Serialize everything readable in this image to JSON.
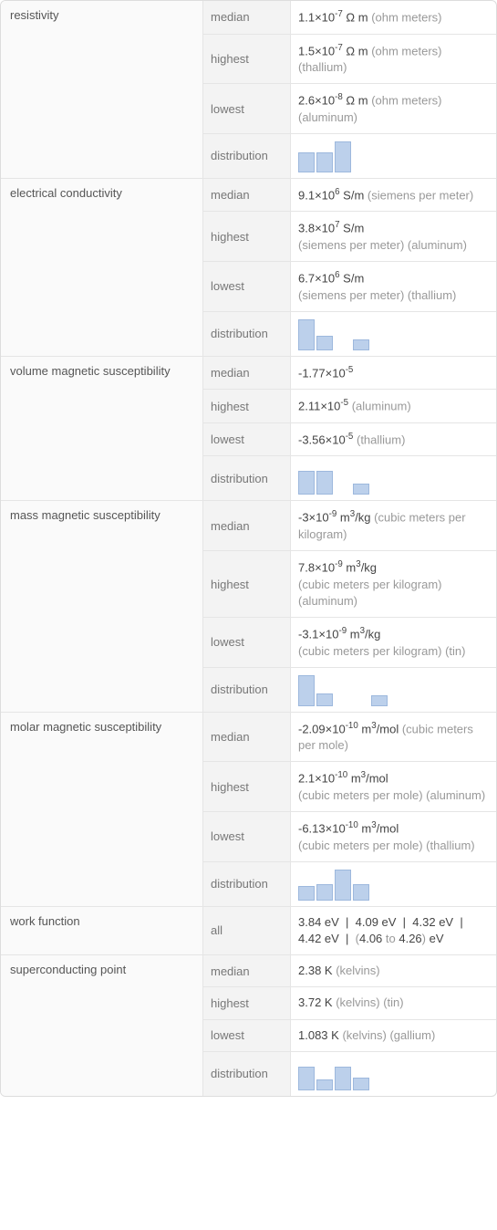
{
  "bar_color": "#bcd0eb",
  "bar_border": "#9db8dd",
  "properties": [
    {
      "name": "resistivity",
      "rows": [
        {
          "label": "median",
          "value_html": "1.1×10<sup>-7</sup> Ω m <span class='unit-note'>(ohm meters)</span>"
        },
        {
          "label": "highest",
          "value_html": "1.5×10<sup>-7</sup> Ω m <span class='unit-note'>(ohm meters) (thallium)</span>"
        },
        {
          "label": "lowest",
          "value_html": "2.6×10<sup>-8</sup> Ω m <span class='unit-note'>(ohm meters) (aluminum)</span>"
        },
        {
          "label": "distribution",
          "dist": [
            22,
            22,
            34
          ]
        }
      ]
    },
    {
      "name": "electrical conductivity",
      "rows": [
        {
          "label": "median",
          "value_html": "9.1×10<sup>6</sup> S/m <span class='unit-note'>(siemens per meter)</span>"
        },
        {
          "label": "highest",
          "value_html": "3.8×10<sup>7</sup> S/m<br><span class='unit-note'>(siemens per meter) (aluminum)</span>"
        },
        {
          "label": "lowest",
          "value_html": "6.7×10<sup>6</sup> S/m<br><span class='unit-note'>(siemens per meter) (thallium)</span>"
        },
        {
          "label": "distribution",
          "dist": [
            34,
            16,
            0,
            12
          ]
        }
      ]
    },
    {
      "name": "volume magnetic susceptibility",
      "rows": [
        {
          "label": "median",
          "value_html": "-1.77×10<sup>-5</sup>"
        },
        {
          "label": "highest",
          "value_html": "2.11×10<sup>-5</sup> <span class='unit-note'>(aluminum)</span>"
        },
        {
          "label": "lowest",
          "value_html": "-3.56×10<sup>-5</sup> <span class='unit-note'>(thallium)</span>"
        },
        {
          "label": "distribution",
          "dist": [
            26,
            26,
            0,
            12
          ]
        }
      ]
    },
    {
      "name": "mass magnetic susceptibility",
      "rows": [
        {
          "label": "median",
          "value_html": "-3×10<sup>-9</sup> m<sup>3</sup>/kg <span class='unit-note'>(cubic meters per kilogram)</span>"
        },
        {
          "label": "highest",
          "value_html": "7.8×10<sup>-9</sup> m<sup>3</sup>/kg<br><span class='unit-note'>(cubic meters per kilogram) (aluminum)</span>"
        },
        {
          "label": "lowest",
          "value_html": "-3.1×10<sup>-9</sup> m<sup>3</sup>/kg<br><span class='unit-note'>(cubic meters per kilogram) (tin)</span>"
        },
        {
          "label": "distribution",
          "dist": [
            34,
            14,
            0,
            0,
            12
          ]
        }
      ]
    },
    {
      "name": "molar magnetic susceptibility",
      "rows": [
        {
          "label": "median",
          "value_html": "-2.09×10<sup>-10</sup> m<sup>3</sup>/mol <span class='unit-note'>(cubic meters per mole)</span>"
        },
        {
          "label": "highest",
          "value_html": "2.1×10<sup>-10</sup> m<sup>3</sup>/mol<br><span class='unit-note'>(cubic meters per mole) (aluminum)</span>"
        },
        {
          "label": "lowest",
          "value_html": "-6.13×10<sup>-10</sup> m<sup>3</sup>/mol<br><span class='unit-note'>(cubic meters per mole) (thallium)</span>"
        },
        {
          "label": "distribution",
          "dist": [
            16,
            18,
            34,
            18
          ]
        }
      ]
    },
    {
      "name": "work function",
      "rows": [
        {
          "label": "all",
          "value_html": "3.84 eV &nbsp;|&nbsp; 4.09 eV &nbsp;|&nbsp; 4.32 eV &nbsp;|&nbsp; 4.42 eV &nbsp;|&nbsp; <span class='unit-note'>(</span>4.06 <span class='unit-note'>to</span> 4.26<span class='unit-note'>)</span> eV"
        }
      ]
    },
    {
      "name": "superconducting point",
      "rows": [
        {
          "label": "median",
          "value_html": "2.38 K <span class='unit-note'>(kelvins)</span>"
        },
        {
          "label": "highest",
          "value_html": "3.72 K <span class='unit-note'>(kelvins) (tin)</span>"
        },
        {
          "label": "lowest",
          "value_html": "1.083 K <span class='unit-note'>(kelvins) (gallium)</span>"
        },
        {
          "label": "distribution",
          "dist": [
            26,
            12,
            26,
            14
          ]
        }
      ]
    }
  ]
}
